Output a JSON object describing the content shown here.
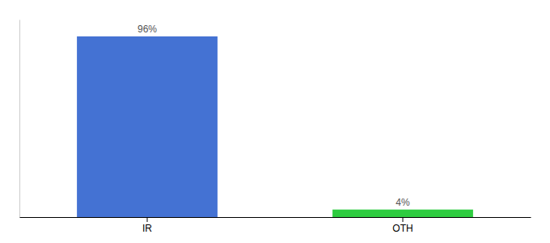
{
  "chart_data": {
    "type": "bar",
    "categories": [
      "IR",
      "OTH"
    ],
    "values": [
      96,
      4
    ],
    "value_labels": [
      "96%",
      "4%"
    ],
    "colors": [
      "#4472d3",
      "#2ecc40"
    ],
    "ylim": [
      0,
      105
    ],
    "grid": false,
    "data_labels": true,
    "tick_labels": "x"
  }
}
